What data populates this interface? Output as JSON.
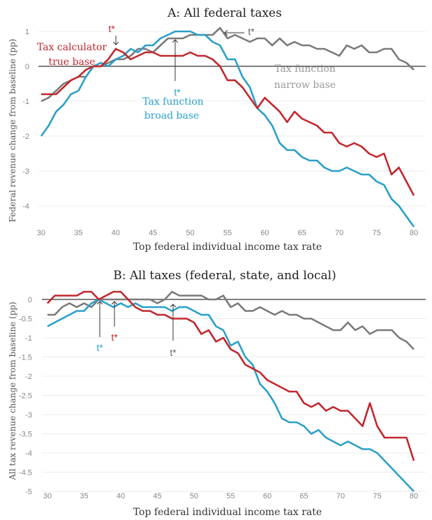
{
  "colors": {
    "calculator": "#c0282d",
    "broad": "#2a9fc9",
    "narrow": "#7a7a7a"
  },
  "chart_data": [
    {
      "type": "line",
      "title": "A: All federal taxes",
      "xlabel": "Top federal individual income tax rate",
      "ylabel": "Federal revenue change from baseline (pp)",
      "xlim": [
        30,
        80
      ],
      "ylim": [
        -4.7,
        1.2
      ],
      "xticks": [
        "30",
        "35",
        "40",
        "45",
        "50",
        "55",
        "60",
        "65",
        "70",
        "75",
        "80"
      ],
      "yticks": [
        "1",
        "0",
        "-1",
        "-2",
        "-3",
        "-4"
      ],
      "grid": true,
      "x_start": 30,
      "series": [
        {
          "name": "Tax calculator true base",
          "key": "calculator",
          "values": [
            -0.8,
            -0.8,
            -0.8,
            -0.6,
            -0.4,
            -0.3,
            -0.1,
            0,
            0,
            0.2,
            0.5,
            0.4,
            0.2,
            0.3,
            0.4,
            0.4,
            0.3,
            0.3,
            0.3,
            0.3,
            0.4,
            0.3,
            0.3,
            0.2,
            0,
            -0.4,
            -0.4,
            -0.6,
            -0.9,
            -1.2,
            -0.9,
            -1.1,
            -1.3,
            -1.6,
            -1.3,
            -1.5,
            -1.6,
            -1.7,
            -1.9,
            -1.9,
            -2.2,
            -2.3,
            -2.2,
            -2.3,
            -2.5,
            -2.6,
            -2.5,
            -3.1,
            -2.9,
            -3.3,
            -3.7
          ]
        },
        {
          "name": "Tax function broad base",
          "key": "broad",
          "values": [
            -2,
            -1.7,
            -1.3,
            -1.1,
            -0.8,
            -0.7,
            -0.3,
            0,
            0.1,
            0,
            0.2,
            0.3,
            0.5,
            0.4,
            0.6,
            0.6,
            0.8,
            0.9,
            1,
            1,
            1,
            0.9,
            0.9,
            0.7,
            0.6,
            0.2,
            0.2,
            -0.3,
            -0.6,
            -1.2,
            -1.4,
            -1.7,
            -2.2,
            -2.4,
            -2.4,
            -2.6,
            -2.7,
            -2.7,
            -2.9,
            -3,
            -3,
            -2.9,
            -3,
            -3.1,
            -3.1,
            -3.3,
            -3.4,
            -3.8,
            -4,
            -4.3,
            -4.6
          ]
        },
        {
          "name": "Tax function narrow base",
          "key": "narrow",
          "values": [
            -1,
            -0.9,
            -0.7,
            -0.5,
            -0.4,
            -0.3,
            -0.3,
            0,
            0,
            0.1,
            0.2,
            0.2,
            0.3,
            0.5,
            0.5,
            0.4,
            0.6,
            0.8,
            0.8,
            0.8,
            0.9,
            0.9,
            0.9,
            0.9,
            1.1,
            0.8,
            0.9,
            0.8,
            0.7,
            0.8,
            0.8,
            0.6,
            0.8,
            0.6,
            0.7,
            0.6,
            0.6,
            0.5,
            0.5,
            0.4,
            0.3,
            0.6,
            0.5,
            0.6,
            0.4,
            0.4,
            0.5,
            0.5,
            0.2,
            0.1,
            -0.1
          ]
        }
      ],
      "annotations": {
        "calculator_tstar": "t*",
        "calculator_label_1": "Tax calculator",
        "calculator_label_2": "true base",
        "broad_tstar": "t*",
        "broad_label_1": "Tax function",
        "broad_label_2": "broad base",
        "narrow_tstar": "t*",
        "narrow_label_1": "Tax function",
        "narrow_label_2": "narrow base"
      }
    },
    {
      "type": "line",
      "title": "B: All taxes (federal, state, and local)",
      "xlabel": "Top federal individual income tax rate",
      "ylabel": "All tax revenue change from baseline (pp)",
      "xlim": [
        30,
        80
      ],
      "ylim": [
        -5,
        0.3
      ],
      "xticks": [
        "30",
        "35",
        "40",
        "45",
        "50",
        "55",
        "60",
        "65",
        "70",
        "75",
        "80"
      ],
      "yticks": [
        "0",
        "-0.5",
        "-1",
        "-1.5",
        "-2",
        "-2.5",
        "-3",
        "-3.5",
        "-4",
        "-4.5",
        "-5"
      ],
      "grid": true,
      "x_start": 30,
      "series": [
        {
          "name": "Tax calculator true base",
          "key": "calculator",
          "values": [
            -0.1,
            0.1,
            0.1,
            0.1,
            0.1,
            0.2,
            0.2,
            0,
            0.1,
            0.2,
            0.2,
            0,
            -0.2,
            -0.3,
            -0.3,
            -0.4,
            -0.4,
            -0.5,
            -0.5,
            -0.5,
            -0.6,
            -0.9,
            -0.8,
            -1.1,
            -1,
            -1.3,
            -1.4,
            -1.7,
            -1.8,
            -1.9,
            -2.1,
            -2.2,
            -2.3,
            -2.4,
            -2.4,
            -2.7,
            -2.8,
            -2.7,
            -2.9,
            -2.8,
            -2.9,
            -2.9,
            -3.1,
            -3.3,
            -2.7,
            -3.3,
            -3.6,
            -3.6,
            -3.6,
            -3.6,
            -4.2
          ]
        },
        {
          "name": "Tax function broad base",
          "key": "broad",
          "values": [
            -0.7,
            -0.6,
            -0.5,
            -0.4,
            -0.3,
            -0.3,
            -0.1,
            0,
            -0.1,
            -0.2,
            -0.1,
            -0.2,
            -0.1,
            -0.2,
            -0.2,
            -0.2,
            -0.2,
            -0.3,
            -0.2,
            -0.2,
            -0.3,
            -0.4,
            -0.4,
            -0.7,
            -0.8,
            -1.2,
            -1.1,
            -1.5,
            -1.7,
            -2.2,
            -2.4,
            -2.7,
            -3.1,
            -3.2,
            -3.2,
            -3.3,
            -3.5,
            -3.4,
            -3.6,
            -3.7,
            -3.8,
            -3.7,
            -3.8,
            -3.9,
            -3.9,
            -4,
            -4.2,
            -4.4,
            -4.6,
            -4.8,
            -5
          ]
        },
        {
          "name": "Tax function narrow base",
          "key": "narrow",
          "values": [
            -0.4,
            -0.4,
            -0.2,
            -0.1,
            -0.2,
            -0.1,
            -0.2,
            0,
            0,
            0,
            0,
            0,
            0,
            0,
            0,
            -0.1,
            0,
            0.2,
            0.1,
            0.1,
            0.1,
            0.1,
            0,
            0,
            0.1,
            -0.2,
            -0.1,
            -0.3,
            -0.3,
            -0.2,
            -0.3,
            -0.4,
            -0.3,
            -0.4,
            -0.4,
            -0.5,
            -0.5,
            -0.6,
            -0.7,
            -0.8,
            -0.8,
            -0.6,
            -0.8,
            -0.7,
            -0.9,
            -0.8,
            -0.8,
            -0.8,
            -1,
            -1.1,
            -1.3
          ]
        }
      ],
      "annotations": {
        "broad_tstar": "t*",
        "calculator_tstar": "t*",
        "narrow_tstar": "t*"
      }
    }
  ]
}
